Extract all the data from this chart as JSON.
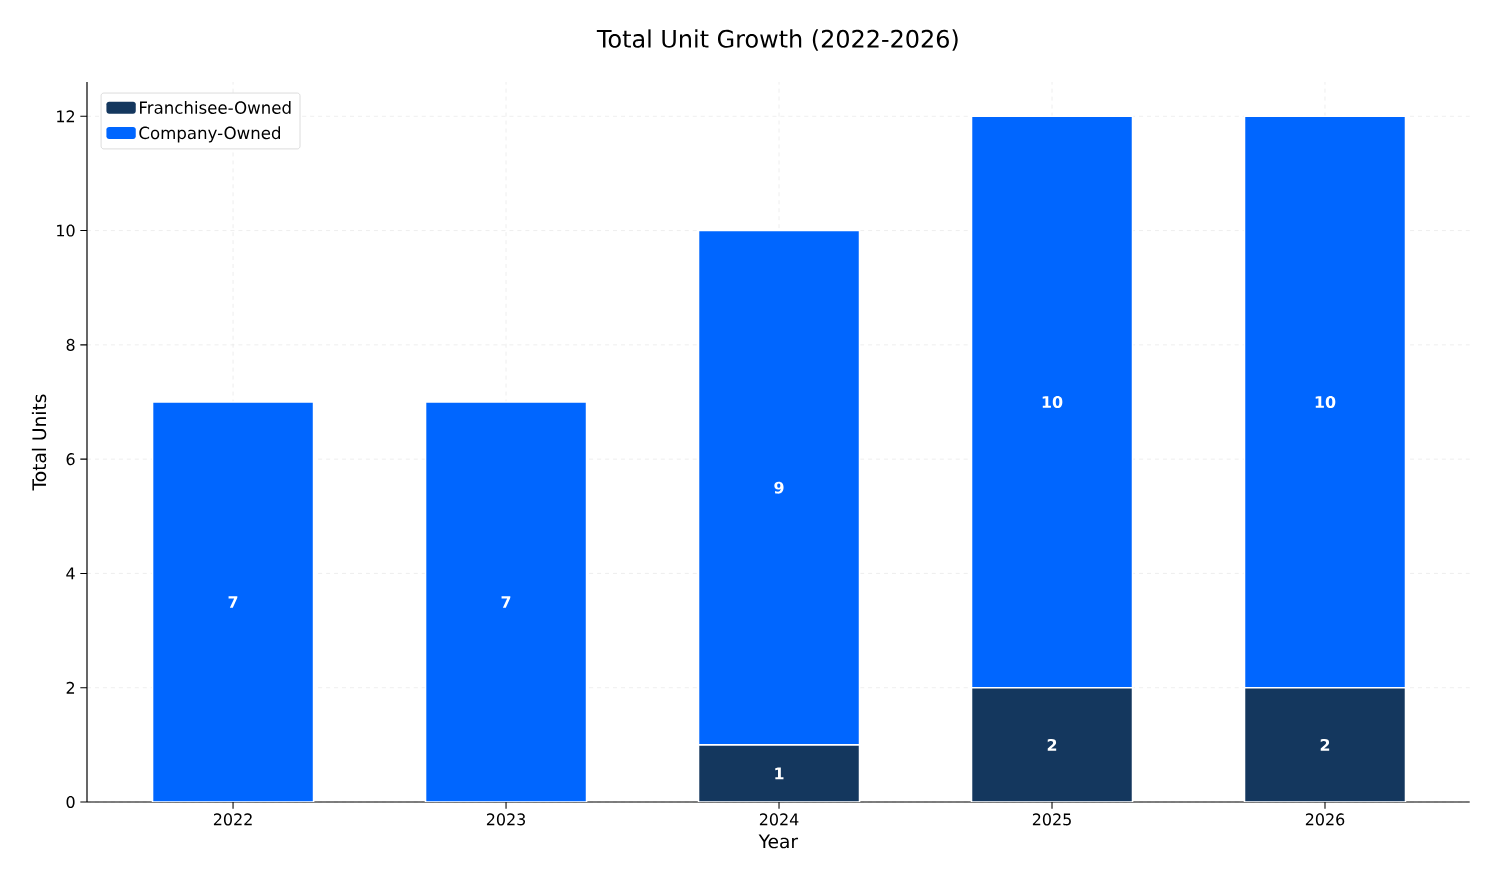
{
  "chart_data": {
    "type": "bar",
    "title": "Total Unit Growth (2022-2026)",
    "xlabel": "Year",
    "ylabel": "Total Units",
    "categories": [
      "2022",
      "2023",
      "2024",
      "2025",
      "2026"
    ],
    "series": [
      {
        "name": "Franchisee-Owned",
        "color": "#14375e",
        "values": [
          0,
          0,
          1,
          2,
          2
        ],
        "value_labels": [
          null,
          null,
          "1",
          "2",
          "2"
        ]
      },
      {
        "name": "Company-Owned",
        "color": "#0066ff",
        "values": [
          7,
          7,
          9,
          10,
          10
        ],
        "value_labels": [
          "7",
          "7",
          "9",
          "10",
          "10"
        ]
      }
    ],
    "stacked": true,
    "ylim": [
      0,
      12.6
    ],
    "yticks": [
      0,
      2,
      4,
      6,
      8,
      10,
      12
    ],
    "grid": true,
    "legend": "top left"
  }
}
